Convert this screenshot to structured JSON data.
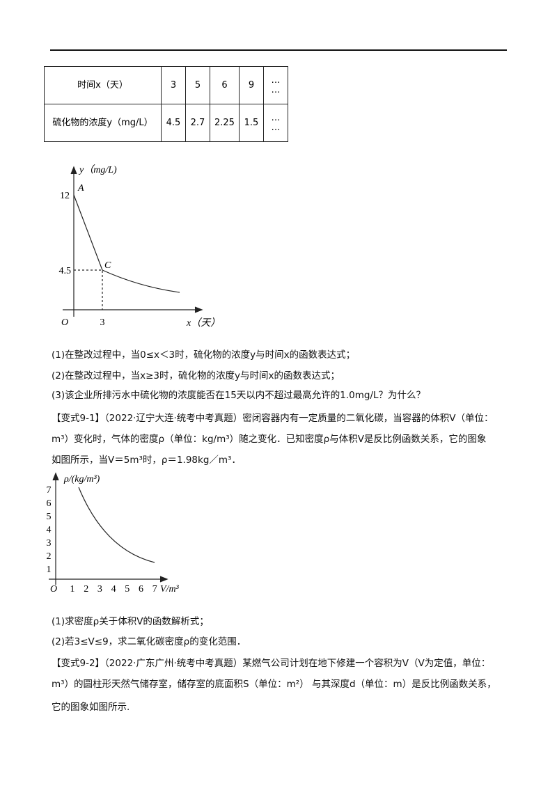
{
  "table": {
    "rows": [
      [
        "时间x（天）",
        "3",
        "5",
        "6",
        "9",
        "…\n…"
      ],
      [
        "硫化物的浓度y（mg/L）",
        "4.5",
        "2.7",
        "2.25",
        "1.5",
        "…\n…"
      ]
    ]
  },
  "figure1": {
    "y_label": "y（mg/L)",
    "x_label": "x（天）",
    "origin": "O",
    "labels": [
      "12",
      "A",
      "4.5",
      "C",
      "3"
    ]
  },
  "questions1": [
    "(1)在整改过程中，当0≤x＜3时，硫化物的浓度y与时间x的函数表达式；",
    "(2)在整改过程中，当x≥3时，硫化物的浓度y与时间x的函数表达式；",
    "(3)该企业所排污水中硫化物的浓度能否在15天以内不超过最高允许的1.0mg/L？为什么？"
  ],
  "variant1": [
    "【变式9-1】（2022·辽宁大连·统考中考真题）密闭容器内有一定质量的二氧化碳，当容器的体积V（单位：",
    "m³）变化时，气体的密度ρ（单位：kg/m³）随之变化．已知密度ρ与体积V是反比例函数关系，它的图象",
    "如图所示，当V＝5m³时，ρ＝1.98kg／m³．"
  ],
  "figure2": {
    "y_label": "ρ/(kg/m³)",
    "x_label": "V/m³",
    "origin": "O",
    "yticks": [
      "1",
      "2",
      "3",
      "4",
      "5",
      "6",
      "7"
    ],
    "xticks": [
      "1",
      "2",
      "3",
      "4",
      "5",
      "6",
      "7"
    ]
  },
  "questions2": [
    "(1)求密度ρ关于体积V的函数解析式；",
    "(2)若3≤V≤9，求二氧化碳密度ρ的变化范围．"
  ],
  "variant2": [
    "【变式9-2】（2022·广东广州·统考中考真题）某燃气公司计划在地下修建一个容积为V（V为定值，单位：",
    "m³）的圆柱形天然气储存室，储存室的底面积S（单位：m²）  与其深度d（单位：m）是反比例函数关系，",
    "它的图象如图所示."
  ]
}
